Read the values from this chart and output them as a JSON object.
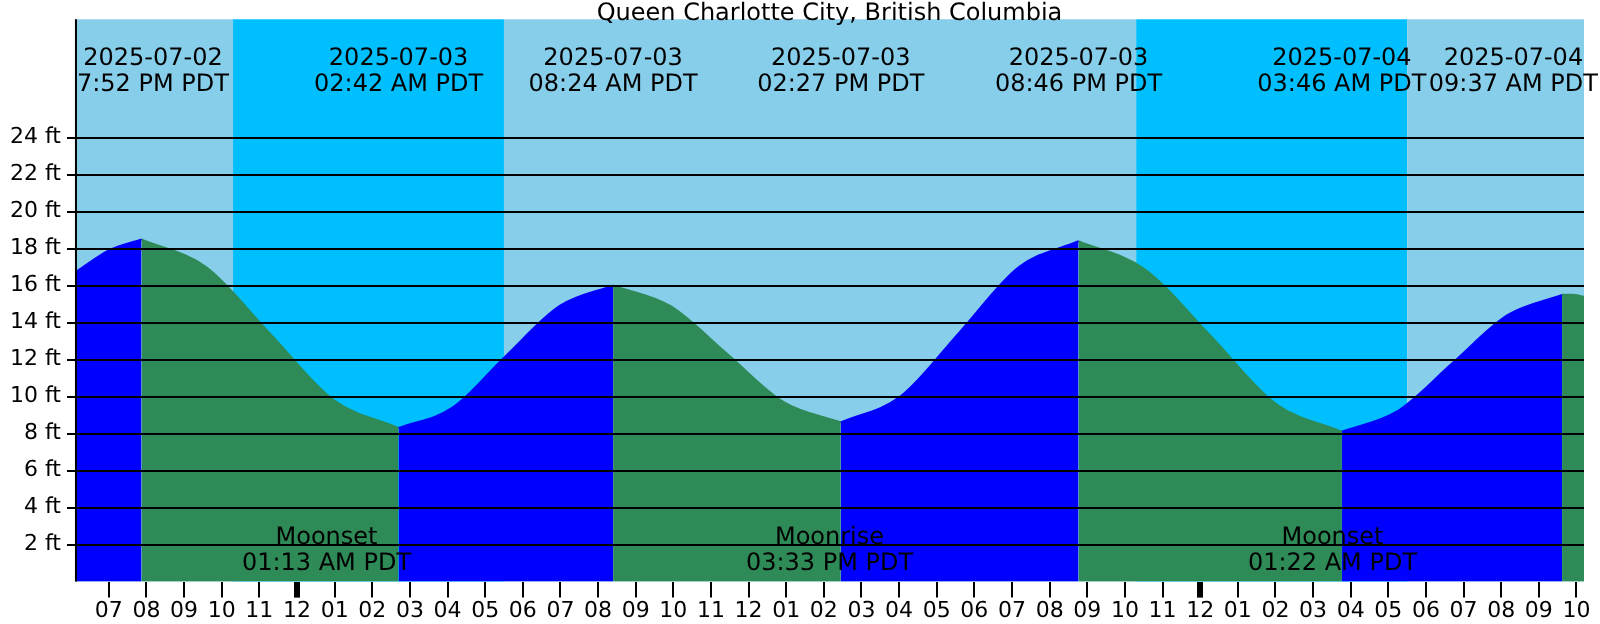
{
  "chart_data": {
    "type": "area",
    "title": "Queen Charlotte City, British Columbia",
    "series": [
      {
        "color": "#0000ff",
        "x": [
          "2025-07-02T18:06",
          "2025-07-02T19:00",
          "2025-07-02T19:52",
          "2025-07-02T23:00",
          "2025-07-03T02:42",
          "2025-07-03T04:08",
          "2025-07-03T05:33",
          "2025-07-03T06:59",
          "2025-07-03T08:24",
          "2025-07-03T11:00",
          "2025-07-03T14:27",
          "2025-07-03T16:02",
          "2025-07-03T17:37",
          "2025-07-03T19:11",
          "2025-07-03T20:46",
          "2025-07-04T00:00",
          "2025-07-04T03:46",
          "2025-07-04T05:14",
          "2025-07-04T06:42",
          "2025-07-04T08:10",
          "2025-07-04T09:37"
        ],
        "values": [
          16.7,
          17.9,
          18.5,
          null,
          8.3,
          9.4,
          12.2,
          14.9,
          16.0,
          null,
          8.6,
          10.0,
          13.5,
          17.0,
          18.4,
          null,
          8.1,
          9.2,
          11.8,
          14.4,
          15.5
        ]
      },
      {
        "color": "#2e8b57",
        "x": [
          "2025-07-02T19:52",
          "2025-07-02T21:35",
          "2025-07-02T23:17",
          "2025-07-03T00:59",
          "2025-07-03T02:42",
          "2025-07-03T05:00",
          "2025-07-03T08:24",
          "2025-07-03T09:55",
          "2025-07-03T11:26",
          "2025-07-03T12:56",
          "2025-07-03T14:27",
          "2025-07-03T17:00",
          "2025-07-03T20:46",
          "2025-07-03T22:31",
          "2025-07-04T00:16",
          "2025-07-04T02:01",
          "2025-07-04T03:46",
          "2025-07-04T06:00",
          "2025-07-04T09:37",
          "2025-07-04T09:54",
          "2025-07-04T10:12"
        ],
        "values": [
          18.5,
          17.0,
          13.4,
          9.8,
          8.3,
          null,
          16.0,
          14.9,
          12.3,
          9.7,
          8.6,
          null,
          18.4,
          16.9,
          13.3,
          9.6,
          8.1,
          null,
          15.5,
          15.5,
          15.4
        ]
      }
    ],
    "bands": [
      {
        "axis": "x",
        "from": "2025-07-02T18:06",
        "to": "2025-07-02T22:18",
        "color": "#87ceeb"
      },
      {
        "axis": "x",
        "from": "2025-07-02T22:18",
        "to": "2025-07-03T05:30",
        "color": "#00bfff"
      },
      {
        "axis": "x",
        "from": "2025-07-03T05:30",
        "to": "2025-07-03T22:18",
        "color": "#87ceeb"
      },
      {
        "axis": "x",
        "from": "2025-07-03T22:18",
        "to": "2025-07-04T05:30",
        "color": "#00bfff"
      },
      {
        "axis": "x",
        "from": "2025-07-04T05:30",
        "to": "2025-07-04T10:12",
        "color": "#87ceeb"
      }
    ],
    "annotations": [
      "2025-07-02\n7:52 PM PDT",
      "2025-07-03\n02:42 AM PDT",
      "2025-07-03\n08:24 AM PDT",
      "2025-07-03\n02:27 PM PDT",
      "2025-07-03\n08:46 PM PDT",
      "2025-07-04\n03:46 AM PDT",
      "2025-07-04\n09:37 AM PDT",
      "Moonset\n01:13 AM PDT",
      "Moonrise\n03:33 PM PDT",
      "Moonset\n01:22 AM PDT"
    ],
    "xlim": [
      "2025-07-02T18:06",
      "2025-07-04T10:12"
    ],
    "xticks": [
      {
        "value": "2025-07-02T19:00",
        "label": "07"
      },
      {
        "value": "2025-07-02T20:00",
        "label": "08"
      },
      {
        "value": "2025-07-02T21:00",
        "label": "09"
      },
      {
        "value": "2025-07-02T22:00",
        "label": "10"
      },
      {
        "value": "2025-07-02T23:00",
        "label": "11"
      },
      {
        "value": "2025-07-03T00:00",
        "label": "12"
      },
      {
        "value": "2025-07-03T01:00",
        "label": "01"
      },
      {
        "value": "2025-07-03T02:00",
        "label": "02"
      },
      {
        "value": "2025-07-03T03:00",
        "label": "03"
      },
      {
        "value": "2025-07-03T04:00",
        "label": "04"
      },
      {
        "value": "2025-07-03T05:00",
        "label": "05"
      },
      {
        "value": "2025-07-03T06:00",
        "label": "06"
      },
      {
        "value": "2025-07-03T07:00",
        "label": "07"
      },
      {
        "value": "2025-07-03T08:00",
        "label": "08"
      },
      {
        "value": "2025-07-03T09:00",
        "label": "09"
      },
      {
        "value": "2025-07-03T10:00",
        "label": "10"
      },
      {
        "value": "2025-07-03T11:00",
        "label": "11"
      },
      {
        "value": "2025-07-03T12:00",
        "label": "12"
      },
      {
        "value": "2025-07-03T13:00",
        "label": "01"
      },
      {
        "value": "2025-07-03T14:00",
        "label": "02"
      },
      {
        "value": "2025-07-03T15:00",
        "label": "03"
      },
      {
        "value": "2025-07-03T16:00",
        "label": "04"
      },
      {
        "value": "2025-07-03T17:00",
        "label": "05"
      },
      {
        "value": "2025-07-03T18:00",
        "label": "06"
      },
      {
        "value": "2025-07-03T19:00",
        "label": "07"
      },
      {
        "value": "2025-07-03T20:00",
        "label": "08"
      },
      {
        "value": "2025-07-03T21:00",
        "label": "09"
      },
      {
        "value": "2025-07-03T22:00",
        "label": "10"
      },
      {
        "value": "2025-07-03T23:00",
        "label": "11"
      },
      {
        "value": "2025-07-04T00:00",
        "label": "12"
      },
      {
        "value": "2025-07-04T01:00",
        "label": "01"
      },
      {
        "value": "2025-07-04T02:00",
        "label": "02"
      },
      {
        "value": "2025-07-04T03:00",
        "label": "03"
      },
      {
        "value": "2025-07-04T04:00",
        "label": "04"
      },
      {
        "value": "2025-07-04T05:00",
        "label": "05"
      },
      {
        "value": "2025-07-04T06:00",
        "label": "06"
      },
      {
        "value": "2025-07-04T07:00",
        "label": "07"
      },
      {
        "value": "2025-07-04T08:00",
        "label": "08"
      },
      {
        "value": "2025-07-04T09:00",
        "label": "09"
      },
      {
        "value": "2025-07-04T10:00",
        "label": "10"
      }
    ],
    "ylim": [
      0,
      30.4
    ],
    "yticks": [
      {
        "value": 2,
        "label": "2 ft"
      },
      {
        "value": 4,
        "label": "4 ft"
      },
      {
        "value": 6,
        "label": "6 ft"
      },
      {
        "value": 8,
        "label": "8 ft"
      },
      {
        "value": 10,
        "label": "10 ft"
      },
      {
        "value": 12,
        "label": "12 ft"
      },
      {
        "value": 14,
        "label": "14 ft"
      },
      {
        "value": 16,
        "label": "16 ft"
      },
      {
        "value": 18,
        "label": "18 ft"
      },
      {
        "value": 20,
        "label": "20 ft"
      },
      {
        "value": 22,
        "label": "22 ft"
      },
      {
        "value": 24,
        "label": "24 ft"
      }
    ],
    "grid": "y",
    "legend": false,
    "marker": "none"
  }
}
